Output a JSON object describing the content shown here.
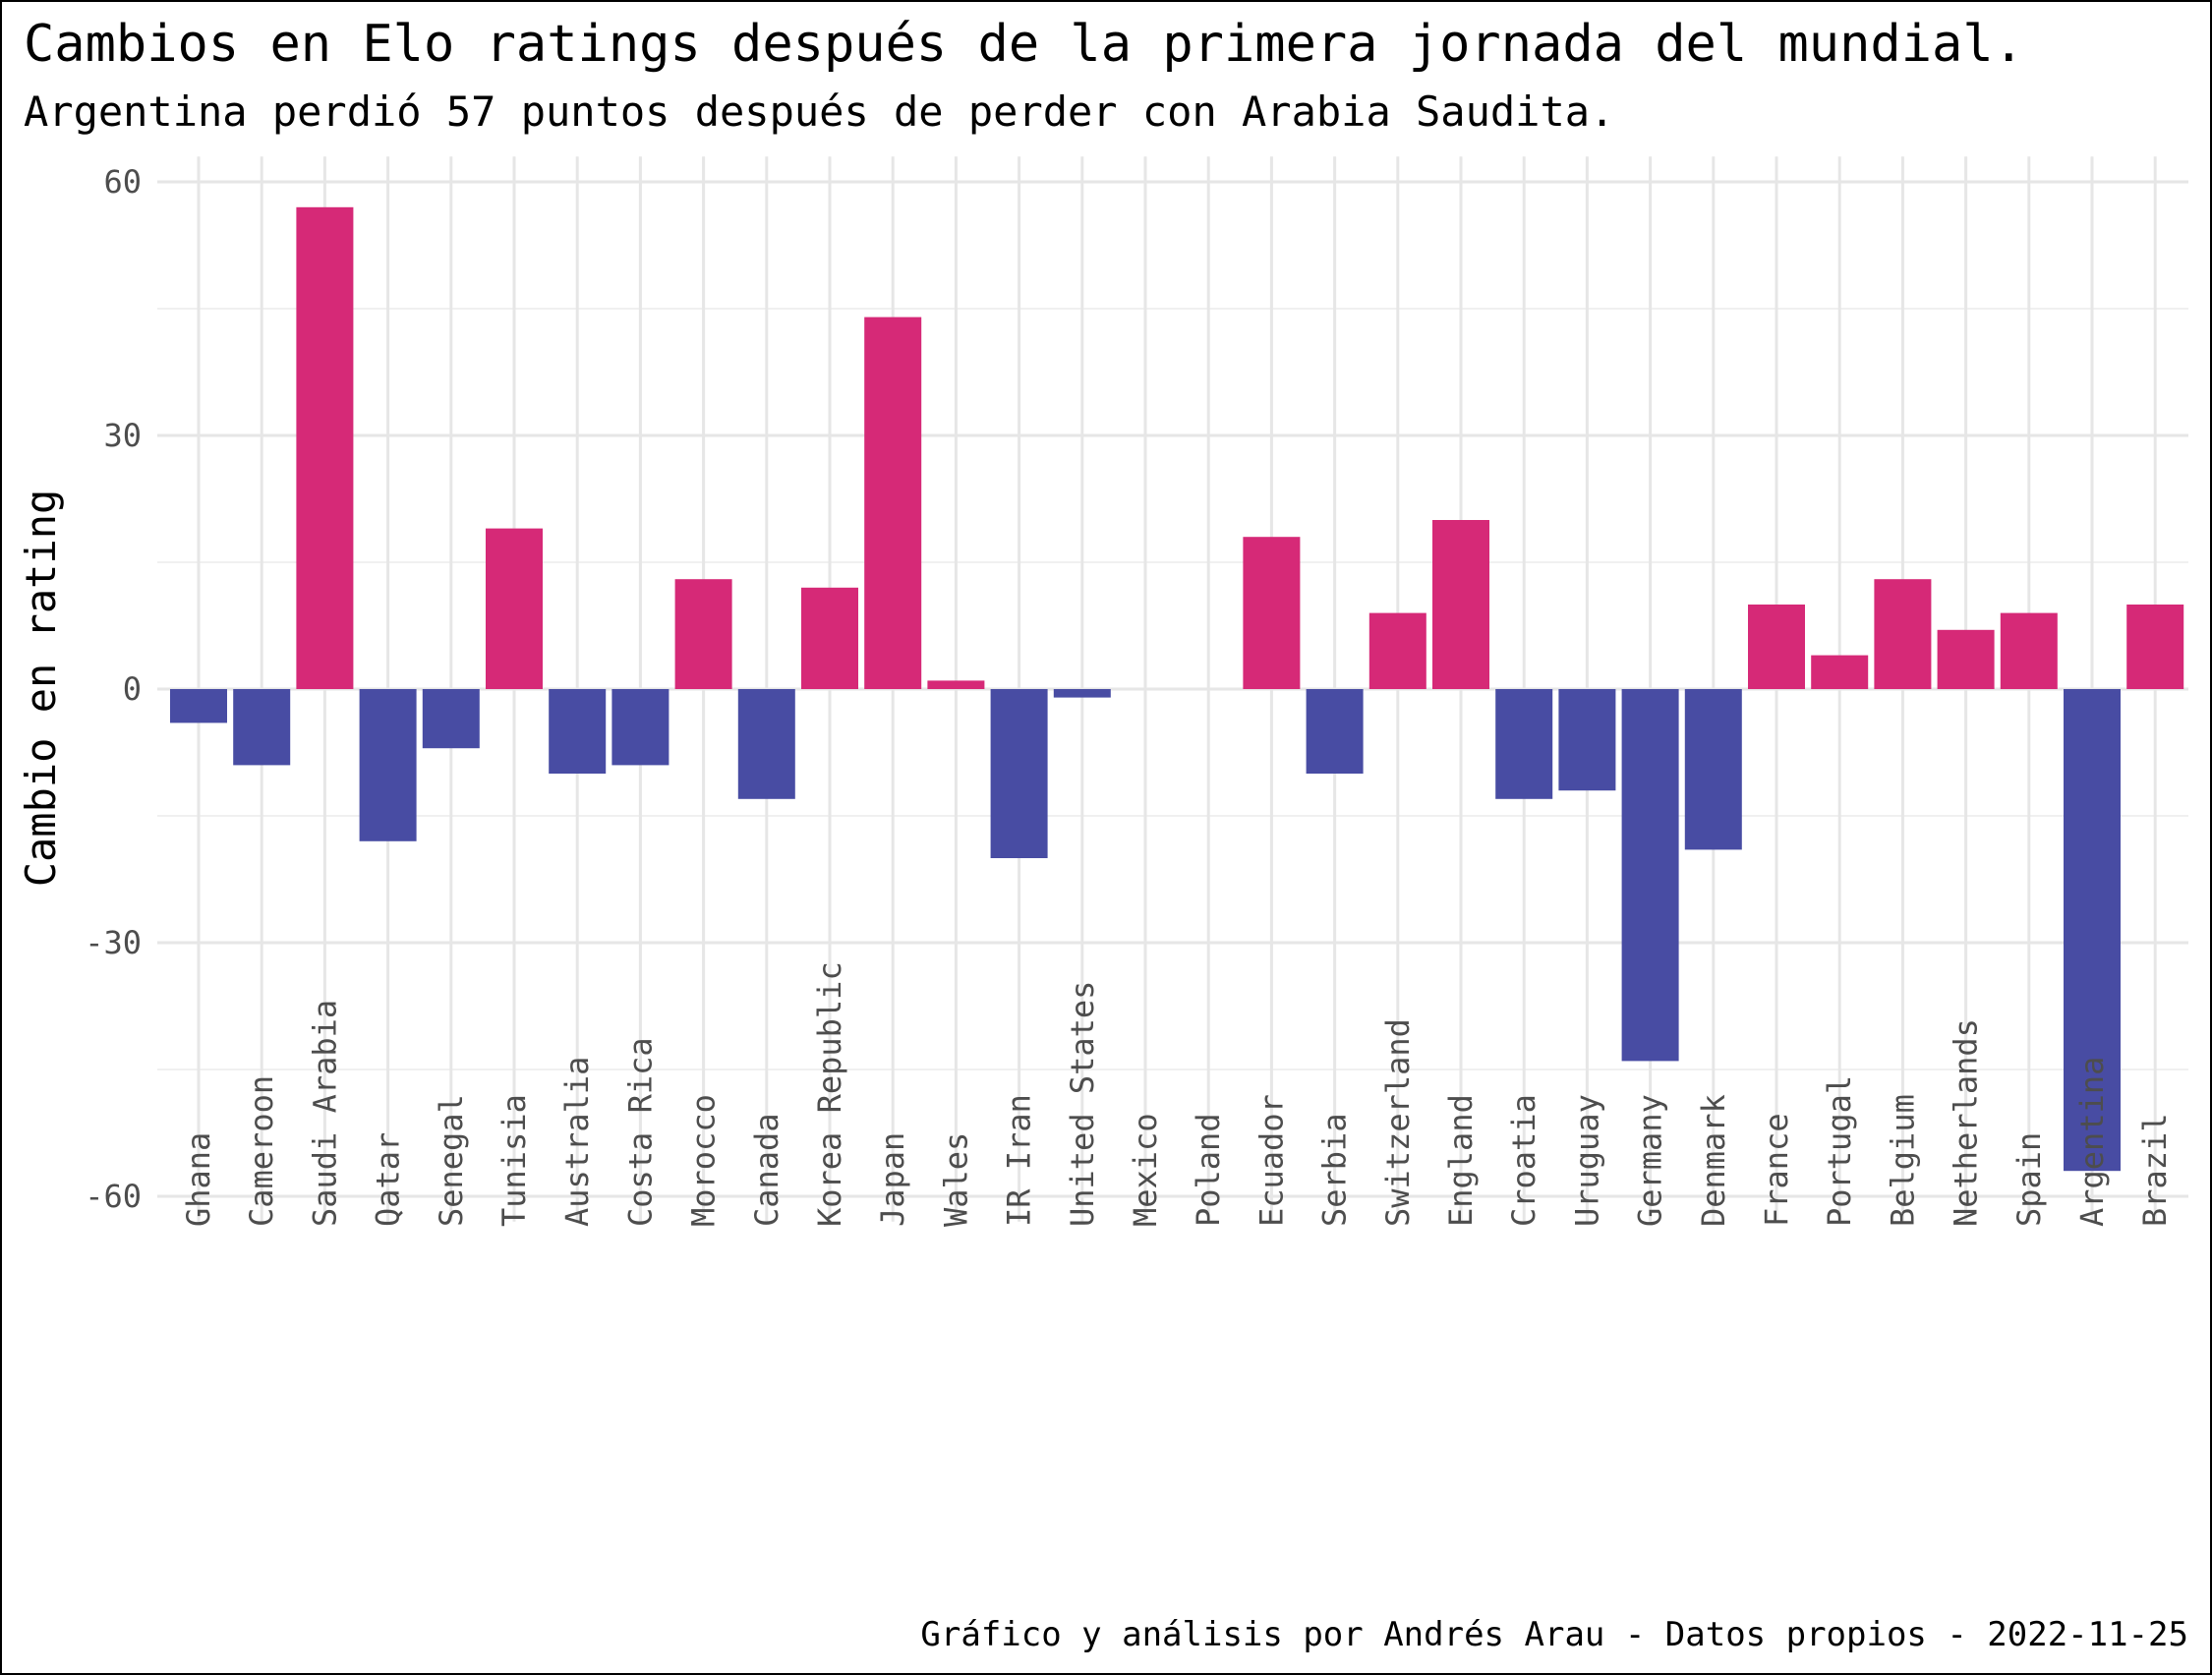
{
  "chart_data": {
    "type": "bar",
    "title": "Cambios en Elo ratings después de la primera jornada del mundial.",
    "subtitle": "Argentina perdió 57 puntos después de perder con Arabia Saudita.",
    "xlabel": "",
    "ylabel": "Cambio en rating",
    "caption": "Gráfico y análisis por Andrés Arau - Datos propios - 2022-11-25",
    "ylim": [
      -63,
      63
    ],
    "yticks": [
      60,
      30,
      0,
      -30,
      -60
    ],
    "ytick_labels": [
      "60",
      "30",
      "0",
      "-30",
      "-60"
    ],
    "grid": true,
    "legend": "none",
    "colors": {
      "positive": "#d62977",
      "negative": "#484ca3"
    },
    "categories": [
      "Ghana",
      "Cameroon",
      "Saudi Arabia",
      "Qatar",
      "Senegal",
      "Tunisia",
      "Australia",
      "Costa Rica",
      "Morocco",
      "Canada",
      "Korea Republic",
      "Japan",
      "Wales",
      "IR Iran",
      "United States",
      "Mexico",
      "Poland",
      "Ecuador",
      "Serbia",
      "Switzerland",
      "England",
      "Croatia",
      "Uruguay",
      "Germany",
      "Denmark",
      "France",
      "Portugal",
      "Belgium",
      "Netherlands",
      "Spain",
      "Argentina",
      "Brazil"
    ],
    "values": [
      -4,
      -9,
      57,
      -18,
      -7,
      19,
      -10,
      -9,
      13,
      -13,
      12,
      44,
      1,
      -20,
      -1,
      0,
      0,
      18,
      -10,
      9,
      20,
      -13,
      -12,
      -44,
      -19,
      10,
      4,
      13,
      7,
      9,
      -57,
      10
    ]
  }
}
